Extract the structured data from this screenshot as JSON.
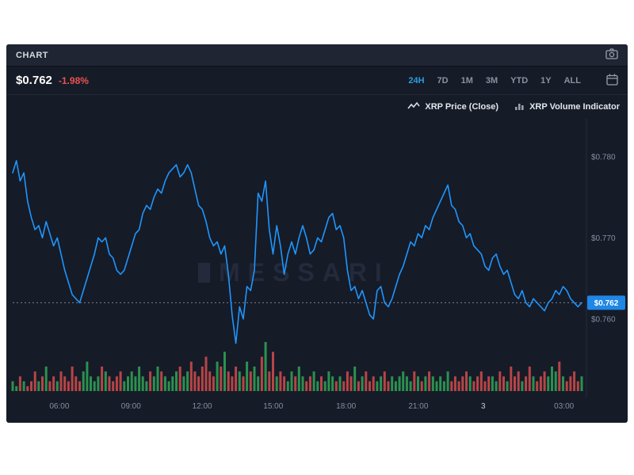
{
  "header": {
    "title": "CHART"
  },
  "price_row": {
    "price": "$0.762",
    "change": "-1.98%",
    "ranges": [
      "24H",
      "7D",
      "1M",
      "3M",
      "YTD",
      "1Y",
      "ALL"
    ],
    "active_range": "24H"
  },
  "legend": {
    "price_label": "XRP Price (Close)",
    "volume_label": "XRP Volume Indicator"
  },
  "watermark": "MESSARI",
  "colors": {
    "accent": "#2d9cdb",
    "line": "#1e96fc",
    "badge": "#1f87e5",
    "negative": "#e8544e",
    "vol_up": "#2e9e53",
    "vol_down": "#c94a4a",
    "axis_text": "#868da0",
    "axis_text_strong": "#c6cad4",
    "grid": "#262b3a",
    "dotted": "#7b8191",
    "watermark": "#232a3b"
  },
  "chart_data": {
    "type": "line",
    "title": "XRP Price (Close) with XRP Volume Indicator, 24H",
    "ylim": [
      0.7517,
      0.7833
    ],
    "y_ticks": [
      {
        "label": "$0.780",
        "value": 0.78
      },
      {
        "label": "$0.770",
        "value": 0.77
      },
      {
        "label": "$0.760",
        "value": 0.76
      }
    ],
    "x_ticks": [
      {
        "label": "06:00",
        "f": 0.082
      },
      {
        "label": "09:00",
        "f": 0.208
      },
      {
        "label": "12:00",
        "f": 0.333
      },
      {
        "label": "15:00",
        "f": 0.458
      },
      {
        "label": "18:00",
        "f": 0.586
      },
      {
        "label": "21:00",
        "f": 0.713
      },
      {
        "label": "3",
        "f": 0.827,
        "strong": true
      },
      {
        "label": "03:00",
        "f": 0.969
      }
    ],
    "marker": {
      "label": "$0.762",
      "value": 0.762
    },
    "series": [
      {
        "name": "XRP Price (Close)",
        "values": [
          0.778,
          0.7795,
          0.777,
          0.778,
          0.7745,
          0.7725,
          0.771,
          0.7715,
          0.77,
          0.772,
          0.7705,
          0.769,
          0.77,
          0.768,
          0.766,
          0.7645,
          0.763,
          0.7625,
          0.762,
          0.7635,
          0.765,
          0.7665,
          0.768,
          0.77,
          0.7695,
          0.77,
          0.768,
          0.7675,
          0.766,
          0.7655,
          0.766,
          0.7675,
          0.769,
          0.7705,
          0.771,
          0.773,
          0.774,
          0.7735,
          0.775,
          0.776,
          0.7755,
          0.777,
          0.778,
          0.7785,
          0.779,
          0.7775,
          0.778,
          0.779,
          0.778,
          0.776,
          0.774,
          0.7735,
          0.772,
          0.77,
          0.769,
          0.7695,
          0.768,
          0.769,
          0.7655,
          0.7605,
          0.757,
          0.7615,
          0.76,
          0.764,
          0.7635,
          0.766,
          0.7755,
          0.7745,
          0.777,
          0.771,
          0.768,
          0.7715,
          0.769,
          0.7655,
          0.768,
          0.7695,
          0.768,
          0.77,
          0.7715,
          0.77,
          0.768,
          0.7685,
          0.77,
          0.7695,
          0.771,
          0.7725,
          0.773,
          0.771,
          0.7715,
          0.77,
          0.766,
          0.7635,
          0.764,
          0.7625,
          0.7635,
          0.762,
          0.7605,
          0.76,
          0.7635,
          0.764,
          0.762,
          0.7615,
          0.7625,
          0.764,
          0.7655,
          0.7665,
          0.768,
          0.7695,
          0.769,
          0.7705,
          0.77,
          0.7715,
          0.771,
          0.7725,
          0.7735,
          0.7745,
          0.7755,
          0.7765,
          0.774,
          0.7735,
          0.772,
          0.7715,
          0.77,
          0.7705,
          0.769,
          0.7685,
          0.768,
          0.7665,
          0.766,
          0.7675,
          0.768,
          0.7665,
          0.7655,
          0.766,
          0.7645,
          0.763,
          0.7625,
          0.7635,
          0.762,
          0.7615,
          0.7625,
          0.762,
          0.7615,
          0.761,
          0.762,
          0.7625,
          0.7635,
          0.763,
          0.764,
          0.7635,
          0.7625,
          0.762,
          0.7615,
          0.762
        ]
      }
    ],
    "volume": {
      "name": "XRP Volume Indicator",
      "scale_max": 10,
      "values": [
        2,
        1,
        3,
        2,
        1,
        2,
        4,
        2,
        3,
        5,
        2,
        3,
        2,
        4,
        3,
        2,
        5,
        3,
        2,
        4,
        6,
        3,
        2,
        3,
        5,
        4,
        3,
        2,
        3,
        4,
        2,
        3,
        4,
        3,
        5,
        3,
        2,
        4,
        3,
        5,
        4,
        3,
        2,
        3,
        4,
        5,
        3,
        4,
        6,
        4,
        3,
        5,
        7,
        4,
        3,
        6,
        5,
        8,
        4,
        3,
        5,
        4,
        3,
        6,
        4,
        5,
        3,
        7,
        10,
        4,
        8,
        3,
        4,
        3,
        2,
        4,
        3,
        5,
        3,
        2,
        3,
        4,
        2,
        3,
        2,
        4,
        3,
        2,
        3,
        2,
        4,
        3,
        5,
        2,
        3,
        4,
        2,
        3,
        2,
        3,
        4,
        2,
        3,
        2,
        3,
        4,
        3,
        2,
        4,
        3,
        2,
        3,
        4,
        3,
        2,
        3,
        2,
        4,
        2,
        3,
        2,
        3,
        4,
        3,
        2,
        3,
        4,
        2,
        3,
        3,
        2,
        4,
        3,
        2,
        5,
        3,
        4,
        2,
        3,
        5,
        3,
        2,
        3,
        4,
        3,
        5,
        4,
        6,
        3,
        2,
        3,
        4,
        2,
        3
      ]
    }
  }
}
